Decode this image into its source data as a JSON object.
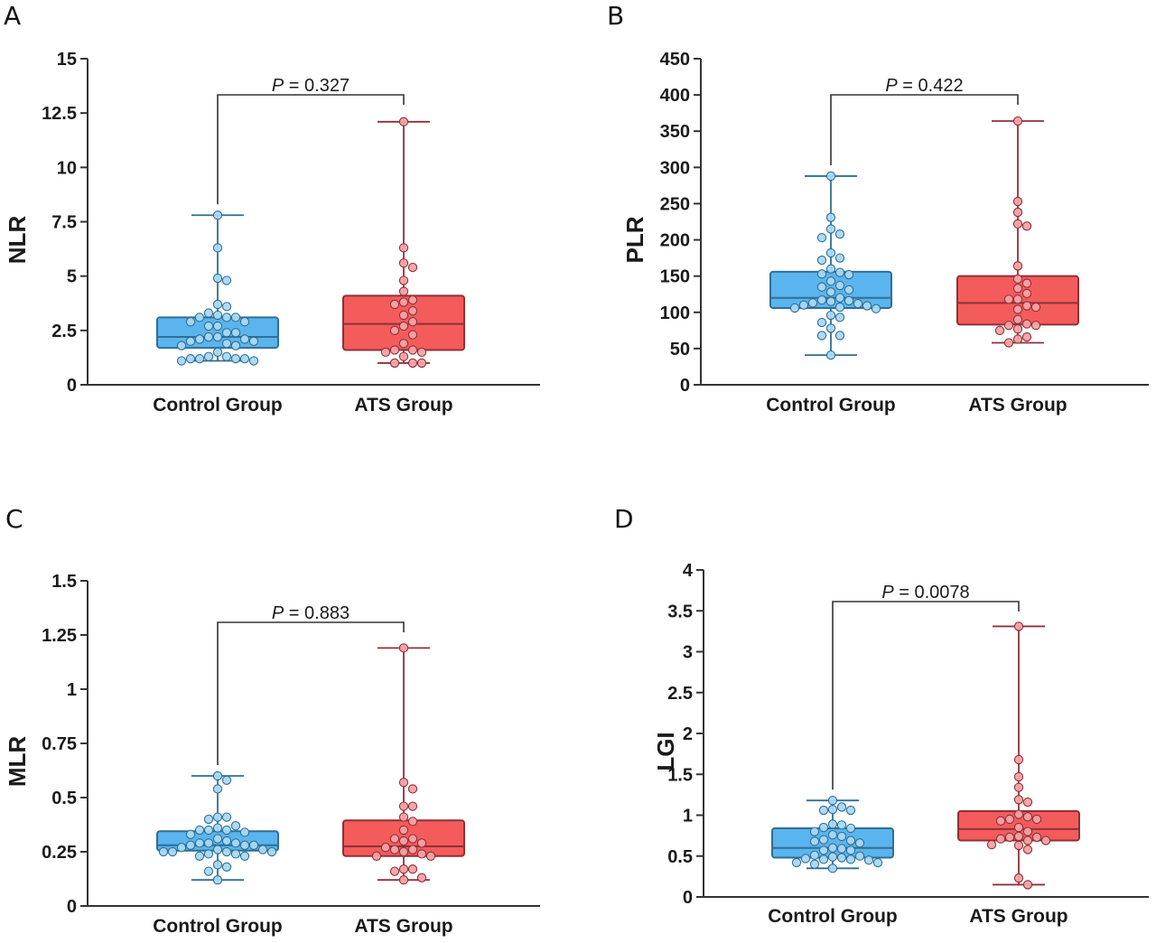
{
  "chart_data": [
    {
      "type": "box",
      "panel": "A",
      "title": "",
      "xlabel": "",
      "ylabel": "NLR",
      "ylim": [
        0,
        15
      ],
      "yticks": [
        0,
        2.5,
        5,
        7.5,
        10,
        12.5,
        15
      ],
      "ytick_labels": [
        "0",
        "2.5",
        "5",
        "7.5",
        "10",
        "12.5",
        "15"
      ],
      "categories": [
        "Control Group",
        "ATS Group"
      ],
      "comparison": {
        "label_prefix": "P",
        "label_text": " = 0.327",
        "p_value": 0.327
      },
      "series": [
        {
          "name": "Control Group",
          "color": "#5ab4ee",
          "point_color": "#a9d8f5",
          "edge_color": "#2f6f94",
          "box": {
            "min": 1.1,
            "q1": 1.7,
            "median": 2.2,
            "q3": 3.1,
            "max": 7.8
          },
          "points": [
            7.8,
            6.3,
            4.9,
            4.8,
            3.7,
            3.6,
            3.3,
            3.2,
            3.1,
            3.1,
            3.1,
            2.9,
            2.9,
            2.7,
            2.7,
            2.4,
            2.4,
            2.2,
            2.2,
            2.1,
            2.1,
            2.0,
            2.0,
            1.9,
            1.8,
            1.8,
            1.5,
            1.3,
            1.3,
            1.2,
            1.2,
            1.2,
            1.2,
            1.1,
            1.1
          ]
        },
        {
          "name": "ATS Group",
          "color": "#f45b5b",
          "point_color": "#f5a2a5",
          "edge_color": "#8e3138",
          "box": {
            "min": 1.0,
            "q1": 1.6,
            "median": 2.8,
            "q3": 4.1,
            "max": 12.1
          },
          "points": [
            12.1,
            6.3,
            5.6,
            5.4,
            4.8,
            4.3,
            3.9,
            3.8,
            3.7,
            3.4,
            3.2,
            2.9,
            2.7,
            2.5,
            2.3,
            1.9,
            1.6,
            1.6,
            1.5,
            1.5,
            1.3,
            1.0,
            1.0,
            1.0
          ]
        }
      ]
    },
    {
      "type": "box",
      "panel": "B",
      "title": "",
      "xlabel": "",
      "ylabel": "PLR",
      "ylim": [
        0,
        450
      ],
      "yticks": [
        0,
        50,
        100,
        150,
        200,
        250,
        300,
        350,
        400,
        450
      ],
      "ytick_labels": [
        "0",
        "50",
        "100",
        "150",
        "200",
        "250",
        "300",
        "350",
        "400",
        "450"
      ],
      "categories": [
        "Control Group",
        "ATS Group"
      ],
      "comparison": {
        "label_prefix": "P",
        "label_text": " = 0.422",
        "p_value": 0.422
      },
      "series": [
        {
          "name": "Control Group",
          "color": "#5ab4ee",
          "point_color": "#a9d8f5",
          "edge_color": "#2f6f94",
          "box": {
            "min": 41,
            "q1": 106,
            "median": 120,
            "q3": 156,
            "max": 288
          },
          "points": [
            288,
            231,
            215,
            208,
            203,
            182,
            175,
            172,
            160,
            155,
            153,
            152,
            143,
            137,
            135,
            131,
            128,
            120,
            117,
            116,
            115,
            113,
            112,
            110,
            109,
            107,
            106,
            105,
            96,
            93,
            86,
            78,
            68,
            68,
            41
          ]
        },
        {
          "name": "ATS Group",
          "color": "#f45b5b",
          "point_color": "#f5a2a5",
          "edge_color": "#8e3138",
          "box": {
            "min": 58,
            "q1": 83,
            "median": 113,
            "q3": 150,
            "max": 364
          },
          "points": [
            364,
            253,
            238,
            222,
            219,
            164,
            146,
            140,
            133,
            126,
            118,
            118,
            109,
            107,
            104,
            90,
            84,
            82,
            82,
            77,
            75,
            66,
            63,
            58
          ]
        }
      ]
    },
    {
      "type": "box",
      "panel": "C",
      "title": "",
      "xlabel": "",
      "ylabel": "MLR",
      "ylim": [
        0,
        1.5
      ],
      "yticks": [
        0,
        0.25,
        0.5,
        0.75,
        1,
        1.25,
        1.5
      ],
      "ytick_labels": [
        "0",
        "0.25",
        "0.5",
        "0.75",
        "1",
        "1.25",
        "1.5"
      ],
      "categories": [
        "Control Group",
        "ATS Group"
      ],
      "comparison": {
        "label_prefix": "P",
        "label_text": " = 0.883",
        "p_value": 0.883
      },
      "series": [
        {
          "name": "Control Group",
          "color": "#5ab4ee",
          "point_color": "#a9d8f5",
          "edge_color": "#2f6f94",
          "box": {
            "min": 0.12,
            "q1": 0.255,
            "median": 0.28,
            "q3": 0.345,
            "max": 0.6
          },
          "points": [
            0.6,
            0.58,
            0.54,
            0.41,
            0.41,
            0.4,
            0.37,
            0.36,
            0.35,
            0.35,
            0.35,
            0.34,
            0.33,
            0.31,
            0.3,
            0.29,
            0.29,
            0.29,
            0.28,
            0.28,
            0.28,
            0.27,
            0.26,
            0.26,
            0.25,
            0.25,
            0.25,
            0.25,
            0.24,
            0.24,
            0.23,
            0.23,
            0.19,
            0.18,
            0.16,
            0.12
          ]
        },
        {
          "name": "ATS Group",
          "color": "#f45b5b",
          "point_color": "#f5a2a5",
          "edge_color": "#8e3138",
          "box": {
            "min": 0.12,
            "q1": 0.23,
            "median": 0.275,
            "q3": 0.395,
            "max": 1.19
          },
          "points": [
            1.19,
            0.57,
            0.54,
            0.46,
            0.46,
            0.41,
            0.39,
            0.35,
            0.31,
            0.31,
            0.3,
            0.29,
            0.27,
            0.26,
            0.26,
            0.25,
            0.24,
            0.23,
            0.23,
            0.17,
            0.17,
            0.16,
            0.13,
            0.12
          ]
        }
      ]
    },
    {
      "type": "box",
      "panel": "D",
      "title": "",
      "xlabel": "",
      "ylabel": "LGI",
      "ylim": [
        0,
        4
      ],
      "yticks": [
        0,
        0.5,
        1,
        1.5,
        2,
        2.5,
        3,
        3.5,
        4
      ],
      "ytick_labels": [
        "0",
        "0.5",
        "1",
        "1.5",
        "2",
        "2.5",
        "3",
        "3.5",
        "4"
      ],
      "categories": [
        "Control Group",
        "ATS Group"
      ],
      "comparison": {
        "label_prefix": "P",
        "label_text": " = 0.0078",
        "p_value": 0.0078
      },
      "series": [
        {
          "name": "Control Group",
          "color": "#5ab4ee",
          "point_color": "#a9d8f5",
          "edge_color": "#2f6f94",
          "box": {
            "min": 0.35,
            "q1": 0.48,
            "median": 0.6,
            "q3": 0.84,
            "max": 1.18
          },
          "points": [
            1.18,
            1.1,
            1.07,
            1.06,
            1.06,
            0.89,
            0.88,
            0.85,
            0.84,
            0.8,
            0.76,
            0.74,
            0.7,
            0.69,
            0.68,
            0.66,
            0.6,
            0.59,
            0.57,
            0.57,
            0.51,
            0.5,
            0.49,
            0.48,
            0.47,
            0.46,
            0.46,
            0.45,
            0.42,
            0.42,
            0.4,
            0.35
          ]
        },
        {
          "name": "ATS Group",
          "color": "#f45b5b",
          "point_color": "#f5a2a5",
          "edge_color": "#8e3138",
          "box": {
            "min": 0.15,
            "q1": 0.69,
            "median": 0.83,
            "q3": 1.05,
            "max": 3.31
          },
          "points": [
            3.31,
            1.68,
            1.47,
            1.34,
            1.19,
            1.16,
            1.01,
            0.98,
            0.95,
            0.95,
            0.93,
            0.85,
            0.8,
            0.74,
            0.73,
            0.73,
            0.71,
            0.69,
            0.69,
            0.64,
            0.63,
            0.58,
            0.23,
            0.15
          ]
        }
      ]
    }
  ],
  "panels": [
    {
      "letter": "A"
    },
    {
      "letter": "B"
    },
    {
      "letter": "C"
    },
    {
      "letter": "D"
    }
  ]
}
